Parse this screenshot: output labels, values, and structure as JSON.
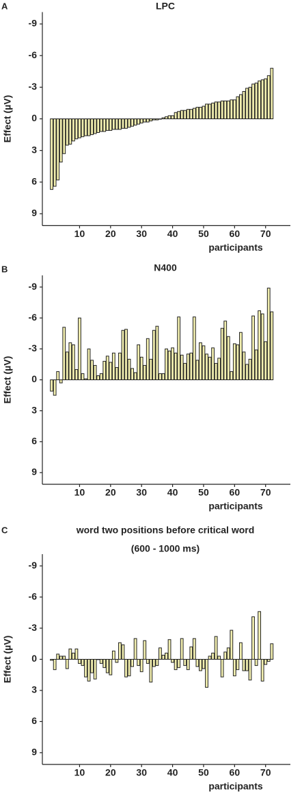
{
  "chart_data": [
    {
      "type": "bar",
      "panel_label": "A",
      "title": "LPC",
      "y_label": "Effect (µV)",
      "x_label": "participants",
      "color": "#f2efb0",
      "edge_color": "#222222",
      "ylim": [
        10,
        -10
      ],
      "yticks": [
        -9,
        -6,
        -3,
        0,
        3,
        6,
        9
      ],
      "xlim": [
        -2,
        78
      ],
      "xticks": [
        10,
        20,
        30,
        40,
        50,
        60,
        70
      ],
      "x": [
        1,
        2,
        3,
        4,
        5,
        6,
        7,
        8,
        9,
        10,
        11,
        12,
        13,
        14,
        15,
        16,
        17,
        18,
        19,
        20,
        21,
        22,
        23,
        24,
        25,
        26,
        27,
        28,
        29,
        30,
        31,
        32,
        33,
        34,
        35,
        36,
        37,
        38,
        39,
        40,
        41,
        42,
        43,
        44,
        45,
        46,
        47,
        48,
        49,
        50,
        51,
        52,
        53,
        54,
        55,
        56,
        57,
        58,
        59,
        60,
        61,
        62,
        63,
        64,
        65,
        66,
        67,
        68,
        69,
        70,
        71,
        72
      ],
      "values": [
        6.7,
        6.4,
        5.8,
        4.1,
        3.3,
        2.5,
        2.4,
        2.1,
        1.9,
        1.8,
        1.7,
        1.6,
        1.6,
        1.5,
        1.4,
        1.3,
        1.2,
        1.2,
        1.1,
        1.1,
        1.0,
        1.0,
        1.0,
        0.9,
        0.9,
        0.8,
        0.7,
        0.6,
        0.5,
        0.4,
        0.3,
        0.3,
        0.2,
        0.1,
        0.1,
        0.0,
        -0.1,
        -0.2,
        -0.3,
        -0.3,
        -0.6,
        -0.7,
        -0.8,
        -0.8,
        -0.9,
        -0.9,
        -1.0,
        -1.1,
        -1.1,
        -1.2,
        -1.4,
        -1.4,
        -1.5,
        -1.6,
        -1.6,
        -1.7,
        -1.7,
        -1.7,
        -1.8,
        -1.8,
        -2.1,
        -2.3,
        -2.6,
        -2.9,
        -3.0,
        -3.3,
        -3.4,
        -3.6,
        -3.7,
        -3.8,
        -4.1,
        -4.8
      ]
    },
    {
      "type": "bar",
      "panel_label": "B",
      "title": "N400",
      "y_label": "Effect (µV)",
      "x_label": "participants",
      "color": "#f2efb0",
      "edge_color": "#222222",
      "ylim": [
        10,
        -10
      ],
      "yticks": [
        -9,
        -6,
        -3,
        0,
        3,
        6,
        9
      ],
      "xlim": [
        -2,
        78
      ],
      "xticks": [
        10,
        20,
        30,
        40,
        50,
        60,
        70
      ],
      "x": [
        1,
        2,
        3,
        4,
        5,
        6,
        7,
        8,
        9,
        10,
        11,
        12,
        13,
        14,
        15,
        16,
        17,
        18,
        19,
        20,
        21,
        22,
        23,
        24,
        25,
        26,
        27,
        28,
        29,
        30,
        31,
        32,
        33,
        34,
        35,
        36,
        37,
        38,
        39,
        40,
        41,
        42,
        43,
        44,
        45,
        46,
        47,
        48,
        49,
        50,
        51,
        52,
        53,
        54,
        55,
        56,
        57,
        58,
        59,
        60,
        61,
        62,
        63,
        64,
        65,
        66,
        67,
        68,
        69,
        70,
        71,
        72
      ],
      "values": [
        1.1,
        1.5,
        -0.8,
        0.3,
        -5.1,
        -2.7,
        -3.6,
        -3.4,
        -1.0,
        -6.0,
        -0.6,
        -0.1,
        -3.0,
        -1.9,
        -1.4,
        -0.4,
        -0.6,
        -1.8,
        -2.3,
        -1.7,
        -2.6,
        -1.2,
        -2.6,
        -4.8,
        -4.9,
        -2.0,
        -1.1,
        -0.7,
        -3.4,
        -2.2,
        -1.4,
        -4.0,
        -2.0,
        -4.8,
        -5.2,
        -0.6,
        -0.6,
        -3.0,
        -2.8,
        -3.1,
        -2.6,
        -6.1,
        -2.4,
        -1.6,
        -2.5,
        -2.6,
        -6.1,
        -1.9,
        -3.6,
        -3.3,
        -2.5,
        -2.2,
        -3.1,
        -1.6,
        -2.1,
        -5.0,
        -5.7,
        -4.2,
        -0.8,
        -3.5,
        -3.4,
        -4.6,
        -2.7,
        -1.5,
        -2.0,
        -6.2,
        -2.9,
        -6.7,
        -6.4,
        -3.7,
        -8.9,
        -6.6
      ]
    },
    {
      "type": "bar",
      "panel_label": "C",
      "title": "word two positions before critical word",
      "subtitle": "(600 - 1000 ms)",
      "y_label": "Effect (µV)",
      "x_label": "participants",
      "color": "#f2efb0",
      "edge_color": "#222222",
      "ylim": [
        10,
        -10
      ],
      "yticks": [
        -9,
        -6,
        -3,
        0,
        3,
        6,
        9
      ],
      "xlim": [
        -2,
        78
      ],
      "xticks": [
        10,
        20,
        30,
        40,
        50,
        60,
        70
      ],
      "x": [
        1,
        2,
        3,
        4,
        5,
        6,
        7,
        8,
        9,
        10,
        11,
        12,
        13,
        14,
        15,
        16,
        17,
        18,
        19,
        20,
        21,
        22,
        23,
        24,
        25,
        26,
        27,
        28,
        29,
        30,
        31,
        32,
        33,
        34,
        35,
        36,
        37,
        38,
        39,
        40,
        41,
        42,
        43,
        44,
        45,
        46,
        47,
        48,
        49,
        50,
        51,
        52,
        53,
        54,
        55,
        56,
        57,
        58,
        59,
        60,
        61,
        62,
        63,
        64,
        65,
        66,
        67,
        68,
        69,
        70,
        71,
        72
      ],
      "values": [
        0.1,
        1.0,
        -0.5,
        -0.3,
        -0.3,
        0.9,
        -1.0,
        -0.6,
        -1.0,
        0.4,
        0.6,
        1.7,
        2.1,
        1.3,
        1.9,
        0.0,
        0.4,
        0.8,
        1.3,
        1.5,
        -0.8,
        0.3,
        -1.6,
        -1.4,
        1.7,
        1.6,
        0.7,
        -2.0,
        0.6,
        1.2,
        -1.8,
        0.4,
        2.2,
        0.7,
        0.6,
        -1.1,
        -0.4,
        -0.6,
        -1.9,
        0.3,
        1.0,
        0.8,
        -2.0,
        0.6,
        1.0,
        -1.2,
        -2.0,
        0.7,
        1.1,
        0.9,
        2.7,
        -0.3,
        -0.6,
        -2.2,
        -0.3,
        1.7,
        -0.7,
        -1.1,
        -2.8,
        1.6,
        1.0,
        -1.6,
        1.1,
        1.1,
        2.0,
        -4.1,
        0.6,
        -4.6,
        2.1,
        0.5,
        0.2,
        -1.5
      ]
    }
  ]
}
